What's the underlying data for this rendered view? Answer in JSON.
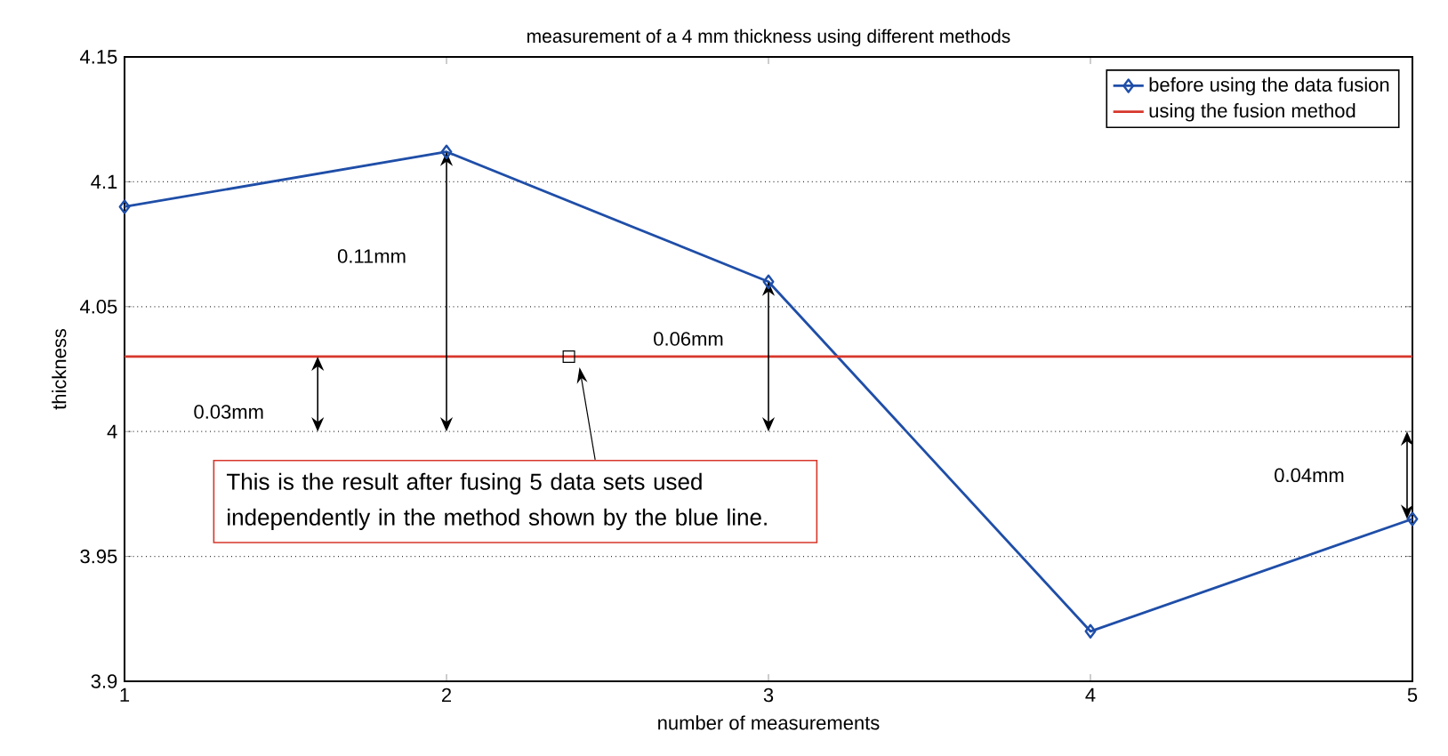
{
  "chart_data": {
    "type": "line",
    "title": "measurement of a 4 mm thickness using different methods",
    "xlabel": "number of measurements",
    "ylabel": "thickness",
    "x": [
      1,
      2,
      3,
      4,
      5
    ],
    "series": [
      {
        "name": "before using the data fusion",
        "color": "#1f4ea8",
        "values": [
          4.09,
          4.112,
          4.06,
          3.92,
          3.965
        ]
      },
      {
        "name": "using the fusion method",
        "color": "#d7372b",
        "x": [
          1,
          5
        ],
        "values": [
          4.03,
          4.03
        ],
        "marker": "none"
      },
      {
        "type": "scatter",
        "color": "#000000",
        "x": [
          2.38
        ],
        "values": [
          4.03
        ],
        "marker": "square"
      }
    ],
    "xlim": [
      1,
      5
    ],
    "xticks": [
      1,
      2,
      3,
      4,
      5
    ],
    "ylim": [
      3.9,
      4.15
    ],
    "yticks": [
      3.9,
      3.95,
      4,
      4.05,
      4.1,
      4.15
    ],
    "grid": "y",
    "legend": "top right",
    "marker": "diamond",
    "line_style": "solid",
    "annotations": [
      "0.03mm",
      "0.11mm",
      "0.06mm",
      "0.04mm",
      "This is the result after fusing 5 data sets used independently in the method shown by the blue line."
    ]
  }
}
